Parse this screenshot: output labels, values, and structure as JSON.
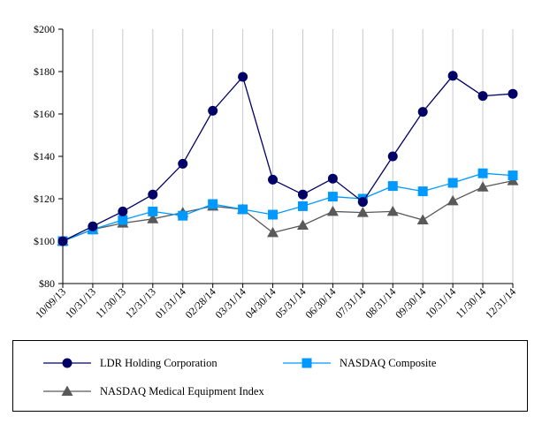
{
  "chart_data": {
    "type": "line",
    "title": "",
    "xlabel": "",
    "ylabel": "",
    "categories": [
      "10/09/13",
      "10/31/13",
      "11/30/13",
      "12/31/13",
      "01/31/14",
      "02/28/14",
      "03/31/14",
      "04/30/14",
      "05/31/14",
      "06/30/14",
      "07/31/14",
      "08/31/14",
      "09/30/14",
      "10/31/14",
      "11/30/14",
      "12/31/14"
    ],
    "ylim": [
      80,
      200
    ],
    "yticks": [
      80,
      100,
      120,
      140,
      160,
      180,
      200
    ],
    "ytick_labels": [
      "$80",
      "$100",
      "$120",
      "$140",
      "$160",
      "$180",
      "$200"
    ],
    "grid": "vertical",
    "legend_position": "bottom",
    "series": [
      {
        "name": "LDR Holding Corporation",
        "color": "#000066",
        "marker": "circle",
        "values": [
          100,
          107,
          114,
          122,
          136.5,
          161.5,
          177.5,
          129,
          122,
          129.5,
          118.5,
          140,
          161,
          178,
          168.5,
          169.5
        ]
      },
      {
        "name": "NASDAQ Composite",
        "color": "#0099ff",
        "marker": "square",
        "values": [
          100,
          105.5,
          110,
          114,
          112,
          117.5,
          115,
          112.5,
          116.5,
          121,
          120,
          126,
          123.5,
          127.5,
          132,
          131
        ]
      },
      {
        "name": "NASDAQ Medical Equipment Index",
        "color": "#595959",
        "marker": "triangle",
        "values": [
          100,
          105.5,
          108.5,
          110.5,
          113.5,
          116.5,
          115,
          104,
          107.5,
          114,
          113.5,
          114,
          110,
          119,
          125.5,
          128.5
        ]
      }
    ]
  }
}
